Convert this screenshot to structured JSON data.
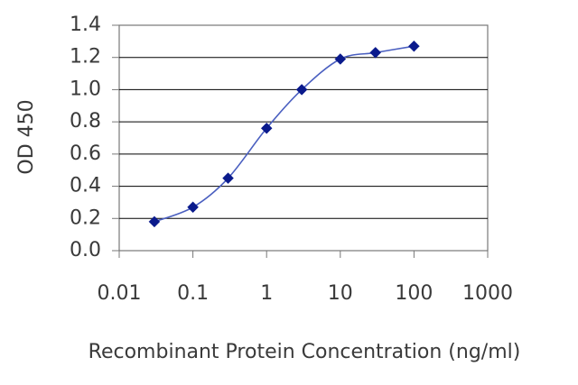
{
  "chart_data": {
    "type": "line",
    "title": "",
    "xlabel": "Recombinant Protein Concentration (ng/ml)",
    "ylabel": "OD 450",
    "x_scale": "log",
    "xlim": [
      0.01,
      1000
    ],
    "ylim": [
      0,
      1.4
    ],
    "x_ticks": [
      "0.01",
      "0.1",
      "1",
      "10",
      "100",
      "1000"
    ],
    "y_ticks": [
      "0.0",
      "0.2",
      "0.4",
      "0.6",
      "0.8",
      "1.0",
      "1.2",
      "1.4"
    ],
    "grid": "horizontal",
    "series": [
      {
        "x": [
          0.03,
          0.1,
          0.3,
          1,
          3,
          10,
          30,
          100
        ],
        "y": [
          0.18,
          0.27,
          0.45,
          0.76,
          1.0,
          1.19,
          1.23,
          1.27
        ]
      }
    ],
    "colors": {
      "line": "#4a5fc0",
      "marker": "#0a1a8c",
      "grid": "#000000",
      "frame": "#777777"
    }
  }
}
